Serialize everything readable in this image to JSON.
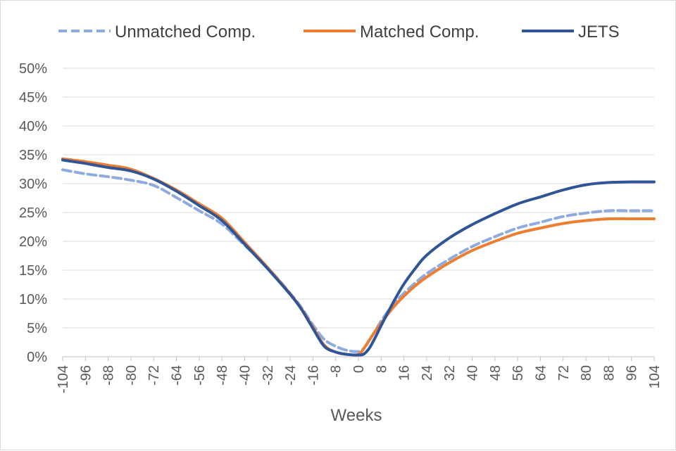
{
  "chart_data": {
    "type": "line",
    "xlabel": "Weeks",
    "ylabel": "",
    "xlim": [
      -104,
      104
    ],
    "ylim": [
      0,
      50
    ],
    "grid": true,
    "legend_position": "top",
    "x_ticks": [
      -104,
      -96,
      -88,
      -80,
      -72,
      -64,
      -56,
      -48,
      -40,
      -32,
      -24,
      -16,
      -8,
      0,
      8,
      16,
      24,
      32,
      40,
      48,
      56,
      64,
      72,
      80,
      88,
      96,
      104
    ],
    "y_ticks": [
      0,
      5,
      10,
      15,
      20,
      25,
      30,
      35,
      40,
      45,
      50
    ],
    "y_tick_labels": [
      "0%",
      "5%",
      "10%",
      "15%",
      "20%",
      "25%",
      "30%",
      "35%",
      "40%",
      "45%",
      "50%"
    ],
    "series": [
      {
        "name": "Unmatched Comp.",
        "color": "#8faadc",
        "dash": "dashed",
        "x": [
          -104,
          -96,
          -88,
          -80,
          -72,
          -64,
          -56,
          -48,
          -40,
          -32,
          -24,
          -20,
          -16,
          -12,
          -8,
          -4,
          0,
          2,
          4,
          6,
          8,
          12,
          16,
          20,
          24,
          32,
          40,
          48,
          56,
          64,
          72,
          80,
          88,
          96,
          104
        ],
        "y": [
          32.4,
          31.7,
          31.2,
          30.6,
          29.7,
          27.6,
          25.3,
          23.0,
          19.3,
          15.5,
          11.0,
          8.5,
          5.5,
          3.0,
          1.8,
          1.1,
          0.9,
          1.5,
          3.0,
          4.5,
          6.2,
          8.9,
          11.0,
          12.8,
          14.4,
          16.9,
          19.1,
          20.8,
          22.3,
          23.3,
          24.3,
          24.9,
          25.3,
          25.3,
          25.3
        ]
      },
      {
        "name": "Matched Comp.",
        "color": "#ed7d31",
        "dash": "solid",
        "x": [
          -104,
          -96,
          -88,
          -80,
          -72,
          -64,
          -56,
          -48,
          -40,
          -32,
          -24,
          -20,
          -16,
          -12,
          -8,
          -4,
          0,
          2,
          4,
          6,
          8,
          12,
          16,
          20,
          24,
          32,
          40,
          48,
          56,
          64,
          72,
          80,
          88,
          96,
          104
        ],
        "y": [
          34.3,
          33.8,
          33.2,
          32.5,
          30.9,
          28.9,
          26.5,
          24.0,
          19.8,
          15.5,
          10.9,
          8.3,
          5.1,
          2.0,
          0.8,
          0.4,
          0.4,
          1.5,
          3.0,
          4.5,
          5.8,
          8.4,
          10.5,
          12.3,
          13.8,
          16.3,
          18.4,
          20.0,
          21.4,
          22.3,
          23.1,
          23.6,
          23.9,
          23.9,
          23.9
        ]
      },
      {
        "name": "JETS",
        "color": "#2f5597",
        "dash": "solid",
        "x": [
          -104,
          -96,
          -88,
          -80,
          -72,
          -64,
          -56,
          -48,
          -40,
          -32,
          -24,
          -20,
          -16,
          -12,
          -8,
          -4,
          0,
          2,
          4,
          6,
          8,
          12,
          16,
          20,
          24,
          32,
          40,
          48,
          56,
          64,
          72,
          80,
          88,
          96,
          104
        ],
        "y": [
          34.1,
          33.5,
          32.8,
          32.2,
          30.8,
          28.7,
          26.2,
          23.6,
          19.5,
          15.3,
          10.8,
          8.2,
          4.9,
          1.8,
          0.8,
          0.4,
          0.3,
          0.5,
          1.6,
          3.4,
          5.4,
          9.2,
          12.6,
          15.3,
          17.6,
          20.6,
          22.9,
          24.8,
          26.5,
          27.7,
          28.9,
          29.8,
          30.2,
          30.3,
          30.3
        ]
      }
    ]
  }
}
